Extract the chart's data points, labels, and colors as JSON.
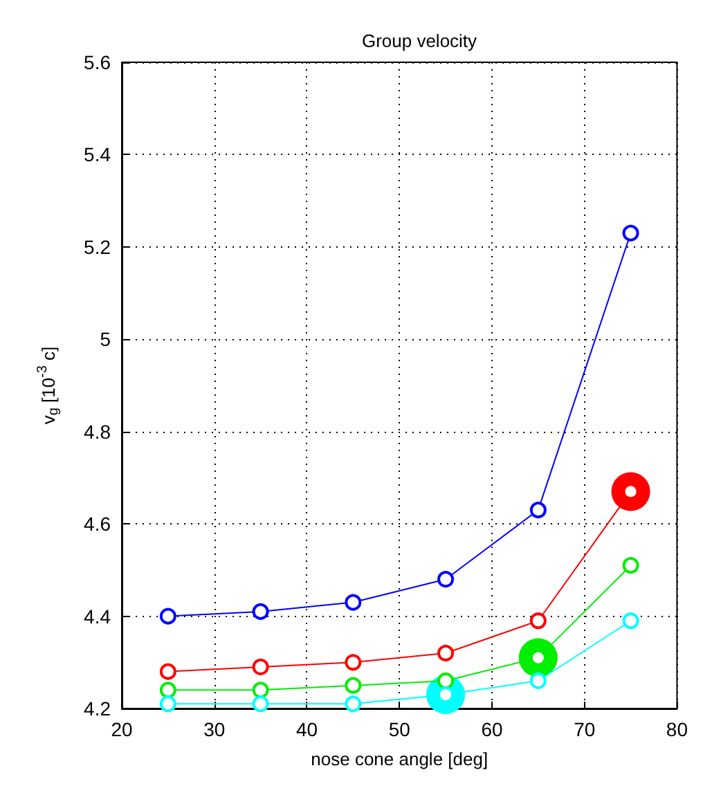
{
  "chart_data": {
    "type": "line",
    "title": "Group velocity",
    "xlabel": "nose cone angle [deg]",
    "ylabel": "v$_{g}$ [10$^{-3}$ c]",
    "x": [
      25,
      35,
      45,
      55,
      65,
      75
    ],
    "series": [
      {
        "color": "#0000ff",
        "values": [
          4.4,
          4.41,
          4.43,
          4.48,
          4.63,
          5.23
        ]
      },
      {
        "color": "#ff0000",
        "values": [
          4.28,
          4.29,
          4.3,
          4.32,
          4.39,
          4.67
        ]
      },
      {
        "color": "#00ee00",
        "values": [
          4.24,
          4.24,
          4.25,
          4.26,
          4.31,
          4.51
        ]
      },
      {
        "color": "#00ffff",
        "values": [
          4.21,
          4.21,
          4.21,
          4.23,
          4.26,
          4.39
        ]
      },
      {
        "type": "scatter",
        "color": "#ff0000",
        "x": [
          75
        ],
        "values": [
          4.67
        ]
      },
      {
        "type": "scatter",
        "color": "#00ee00",
        "x": [
          65
        ],
        "values": [
          4.31
        ]
      },
      {
        "type": "scatter",
        "color": "#00ffff",
        "x": [
          55
        ],
        "values": [
          4.23
        ]
      }
    ],
    "xlim": [
      20,
      80
    ],
    "xticks": [
      20,
      30,
      40,
      50,
      60,
      70,
      80
    ],
    "ylim": [
      4.2,
      5.6
    ],
    "yticks": [
      4.2,
      4.4,
      4.6,
      4.8,
      5,
      5.2,
      5.4,
      5.6
    ],
    "grid": true,
    "marker": "circle"
  }
}
